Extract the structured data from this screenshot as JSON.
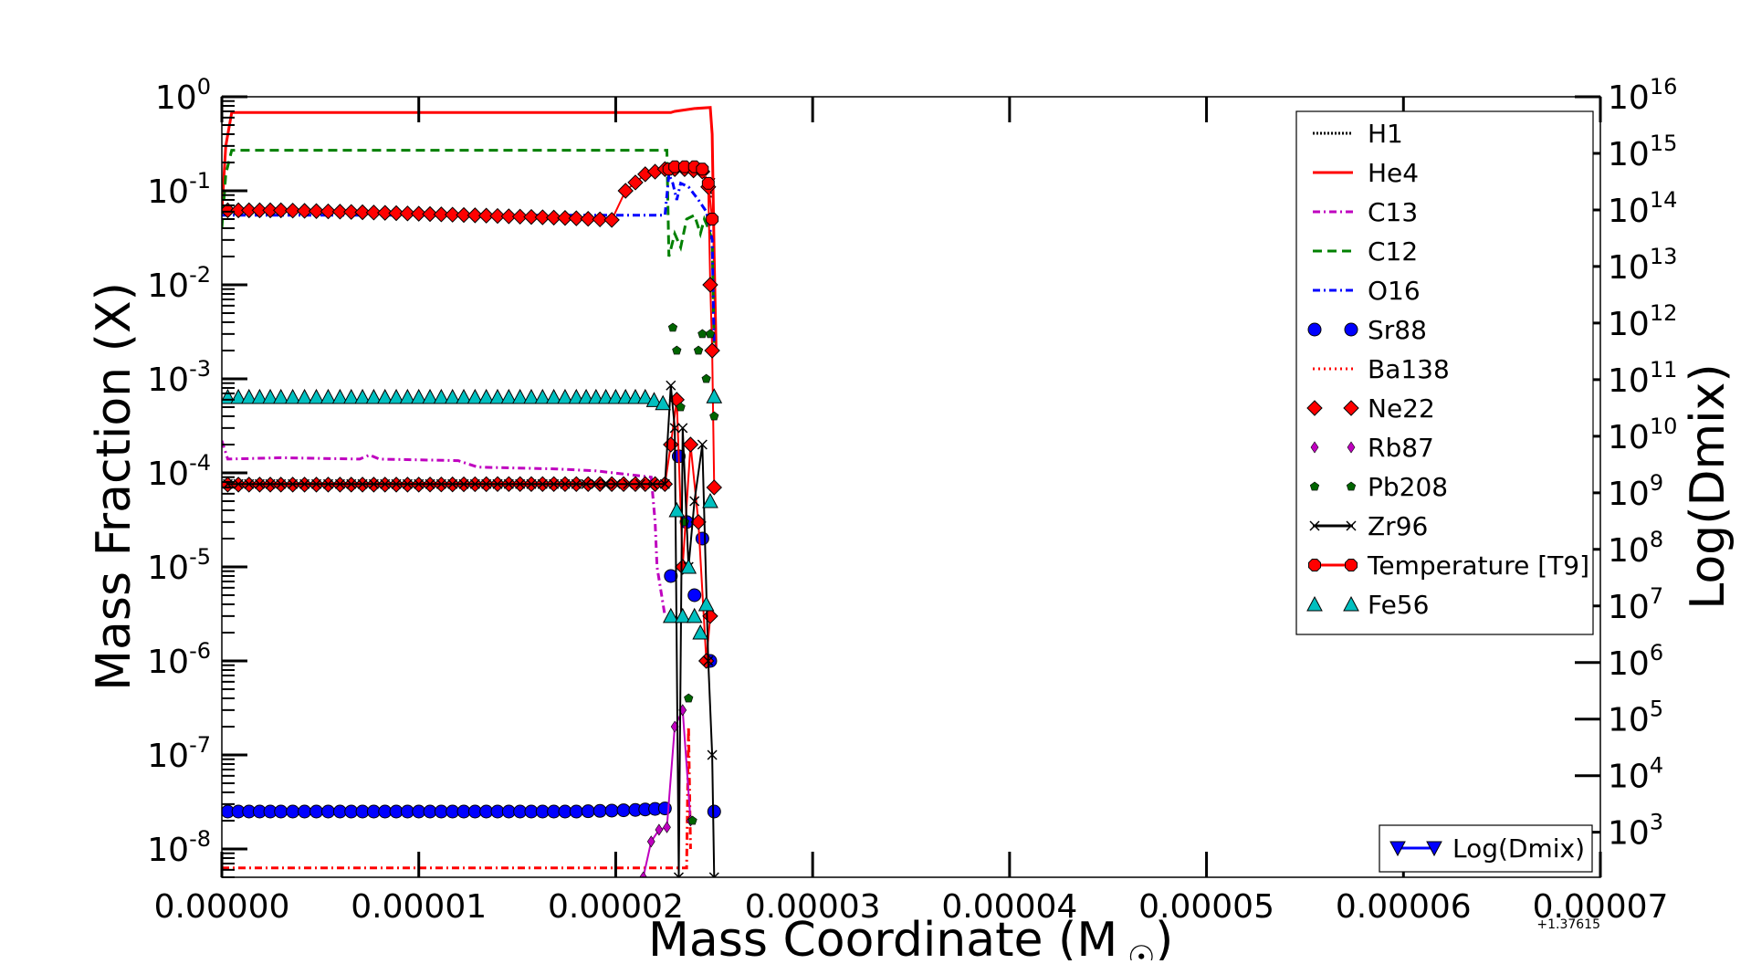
{
  "chart_data": {
    "type": "line",
    "xlabel": "Mass Coordinate (M",
    "xlabel_sub": "☉",
    "xlabel_close": ")",
    "ylabel": "Mass Fraction (X)",
    "y2label": "Log(Dmix)",
    "offset_label": "+1.37615",
    "xlim": [
      0.0,
      7e-05
    ],
    "ylim": [
      5e-09,
      1.0
    ],
    "y2lim": [
      160,
      1e+16
    ],
    "yscale": "log",
    "y2scale": "log",
    "grid": false,
    "legend_position": "upper right",
    "xticks": [
      "0.00000",
      "0.00001",
      "0.00002",
      "0.00003",
      "0.00004",
      "0.00005",
      "0.00006",
      "0.00007"
    ],
    "xtick_values": [
      0,
      1e-05,
      2e-05,
      3e-05,
      4e-05,
      5e-05,
      6e-05,
      7e-05
    ],
    "yticks": [
      {
        "base": "10",
        "exp": "0",
        "value": 1.0
      },
      {
        "base": "10",
        "exp": "-1",
        "value": 0.1
      },
      {
        "base": "10",
        "exp": "-2",
        "value": 0.01
      },
      {
        "base": "10",
        "exp": "-3",
        "value": 0.001
      },
      {
        "base": "10",
        "exp": "-4",
        "value": 0.0001
      },
      {
        "base": "10",
        "exp": "-5",
        "value": 1e-05
      },
      {
        "base": "10",
        "exp": "-6",
        "value": 1e-06
      },
      {
        "base": "10",
        "exp": "-7",
        "value": 1e-07
      },
      {
        "base": "10",
        "exp": "-8",
        "value": 1e-08
      }
    ],
    "y2ticks": [
      {
        "base": "10",
        "exp": "3",
        "value": 1000.0
      },
      {
        "base": "10",
        "exp": "4",
        "value": 10000.0
      },
      {
        "base": "10",
        "exp": "5",
        "value": 100000.0
      },
      {
        "base": "10",
        "exp": "6",
        "value": 1000000.0
      },
      {
        "base": "10",
        "exp": "7",
        "value": 10000000.0
      },
      {
        "base": "10",
        "exp": "8",
        "value": 100000000.0
      },
      {
        "base": "10",
        "exp": "9",
        "value": 1000000000.0
      },
      {
        "base": "10",
        "exp": "10",
        "value": 10000000000.0
      },
      {
        "base": "10",
        "exp": "11",
        "value": 100000000000.0
      },
      {
        "base": "10",
        "exp": "12",
        "value": 1000000000000.0
      },
      {
        "base": "10",
        "exp": "13",
        "value": 10000000000000.0
      },
      {
        "base": "10",
        "exp": "14",
        "value": 100000000000000.0
      },
      {
        "base": "10",
        "exp": "15",
        "value": 1000000000000000.0
      },
      {
        "base": "10",
        "exp": "16",
        "value": 1e+16
      }
    ],
    "series": [
      {
        "name": "H1",
        "color": "#000000",
        "style": "dotted",
        "marker": "none",
        "points": [
          [
            2.48e-05,
            0.085
          ],
          [
            2.49e-05,
            0.12
          ],
          [
            2.5e-05,
            0.14
          ]
        ]
      },
      {
        "name": "He4",
        "color": "#ff0000",
        "style": "solid",
        "marker": "none",
        "points": [
          [
            0,
            0.06
          ],
          [
            2e-07,
            0.3
          ],
          [
            5e-07,
            0.68
          ],
          [
            5e-06,
            0.68
          ],
          [
            1e-05,
            0.68
          ],
          [
            1.5e-05,
            0.68
          ],
          [
            2e-05,
            0.68
          ],
          [
            2.28e-05,
            0.68
          ],
          [
            2.3e-05,
            0.7
          ],
          [
            2.4e-05,
            0.75
          ],
          [
            2.48e-05,
            0.77
          ],
          [
            2.49e-05,
            0.4
          ],
          [
            2.5e-05,
            0.02
          ],
          [
            2.51e-05,
            0.002
          ]
        ]
      },
      {
        "name": "C13",
        "color": "#bf00bf",
        "style": "dashdot",
        "marker": "none",
        "points": [
          [
            0,
            0.00022
          ],
          [
            3e-07,
            0.00014
          ],
          [
            3e-06,
            0.000145
          ],
          [
            7e-06,
            0.00014
          ],
          [
            7.5e-06,
            0.000155
          ],
          [
            8e-06,
            0.00014
          ],
          [
            1.2e-05,
            0.000135
          ],
          [
            1.3e-05,
            0.000115
          ],
          [
            1.7e-05,
            0.00011
          ],
          [
            1.9e-05,
            0.000105
          ],
          [
            2.18e-05,
            9e-05
          ],
          [
            2.2e-05,
            3e-05
          ],
          [
            2.21e-05,
            1e-05
          ],
          [
            2.25e-05,
            3e-06
          ]
        ]
      },
      {
        "name": "C12",
        "color": "#008000",
        "style": "dashed",
        "marker": "none",
        "points": [
          [
            0,
            0.04
          ],
          [
            2e-07,
            0.15
          ],
          [
            5e-07,
            0.27
          ],
          [
            5e-06,
            0.27
          ],
          [
            1e-05,
            0.27
          ],
          [
            1.5e-05,
            0.27
          ],
          [
            2e-05,
            0.27
          ],
          [
            2.26e-05,
            0.27
          ],
          [
            2.27e-05,
            0.02
          ],
          [
            2.3e-05,
            0.035
          ],
          [
            2.33e-05,
            0.025
          ],
          [
            2.36e-05,
            0.05
          ],
          [
            2.4e-05,
            0.055
          ],
          [
            2.43e-05,
            0.035
          ],
          [
            2.45e-05,
            0.05
          ],
          [
            2.47e-05,
            0.04
          ],
          [
            2.49e-05,
            0.03
          ],
          [
            2.5e-05,
            0.002
          ]
        ]
      },
      {
        "name": "O16",
        "color": "#0000ff",
        "style": "dashdot",
        "marker": "none",
        "points": [
          [
            0,
            0.055
          ],
          [
            5e-06,
            0.055
          ],
          [
            1e-05,
            0.055
          ],
          [
            1.5e-05,
            0.055
          ],
          [
            2e-05,
            0.055
          ],
          [
            2.25e-05,
            0.055
          ],
          [
            2.27e-05,
            0.15
          ],
          [
            2.29e-05,
            0.12
          ],
          [
            2.31e-05,
            0.08
          ],
          [
            2.33e-05,
            0.12
          ],
          [
            2.37e-05,
            0.11
          ],
          [
            2.42e-05,
            0.08
          ],
          [
            2.46e-05,
            0.06
          ],
          [
            2.49e-05,
            0.03
          ],
          [
            2.5e-05,
            0.002
          ]
        ]
      },
      {
        "name": "Sr88",
        "color": "#0000ff",
        "style": "none",
        "marker": "circle",
        "points": [
          [
            3e-07,
            2.5e-08
          ],
          [
            3e-06,
            2.5e-08
          ],
          [
            6e-06,
            2.5e-08
          ],
          [
            1e-05,
            2.5e-08
          ],
          [
            1.4e-05,
            2.5e-08
          ],
          [
            1.8e-05,
            2.5e-08
          ],
          [
            2.1e-05,
            2.6e-08
          ],
          [
            2.25e-05,
            2.7e-08
          ],
          [
            2.28e-05,
            8e-06
          ],
          [
            2.32e-05,
            0.00015
          ],
          [
            2.36e-05,
            3e-05
          ],
          [
            2.4e-05,
            5e-06
          ],
          [
            2.44e-05,
            2e-05
          ],
          [
            2.48e-05,
            1e-06
          ],
          [
            2.5e-05,
            2.5e-08
          ]
        ]
      },
      {
        "name": "Ba138",
        "color": "#ff0000",
        "style": "dashdot",
        "marker": "none",
        "points": [
          [
            0,
            6.3e-09
          ],
          [
            5e-06,
            6.3e-09
          ],
          [
            1e-05,
            6.3e-09
          ],
          [
            1.5e-05,
            6.3e-09
          ],
          [
            2e-05,
            6.3e-09
          ],
          [
            2.25e-05,
            6.3e-09
          ],
          [
            2.36e-05,
            6.3e-09
          ],
          [
            2.37e-05,
            2e-07
          ],
          [
            2.38e-05,
            1e-08
          ]
        ]
      },
      {
        "name": "Ne22",
        "color": "#ff0000",
        "style": "solid",
        "marker": "diamond",
        "points": [
          [
            3e-07,
            0.062
          ],
          [
            3e-06,
            0.062
          ],
          [
            6e-06,
            0.06
          ],
          [
            1e-05,
            0.057
          ],
          [
            1.4e-05,
            0.054
          ],
          [
            1.8e-05,
            0.051
          ],
          [
            1.98e-05,
            0.049
          ],
          [
            2.05e-05,
            0.1
          ],
          [
            2.15e-05,
            0.15
          ],
          [
            2.25e-05,
            0.17
          ],
          [
            2.35e-05,
            0.17
          ],
          [
            2.44e-05,
            0.16
          ],
          [
            2.47e-05,
            0.11
          ],
          [
            2.48e-05,
            0.01
          ],
          [
            2.49e-05,
            0.002
          ],
          [
            2.5e-05,
            7e-05
          ]
        ]
      },
      {
        "name": "Ne22_b",
        "color": "#ff0000",
        "style": "solid",
        "marker": "diamond",
        "points": [
          [
            3e-07,
            7.5e-05
          ],
          [
            3e-06,
            7.5e-05
          ],
          [
            6e-06,
            7.5e-05
          ],
          [
            1e-05,
            7.5e-05
          ],
          [
            1.4e-05,
            7.6e-05
          ],
          [
            1.8e-05,
            7.6e-05
          ],
          [
            2.1e-05,
            7.6e-05
          ],
          [
            2.25e-05,
            7.6e-05
          ],
          [
            2.28e-05,
            0.0002
          ],
          [
            2.31e-05,
            0.0006
          ],
          [
            2.34e-05,
            1e-05
          ],
          [
            2.38e-05,
            0.0002
          ],
          [
            2.42e-05,
            3e-05
          ],
          [
            2.46e-05,
            1e-06
          ],
          [
            2.48e-05,
            3e-06
          ]
        ]
      },
      {
        "name": "Rb87",
        "color": "#bf00bf",
        "style": "solid",
        "marker": "diamond-small",
        "points": [
          [
            2.14e-05,
            5e-09
          ],
          [
            2.18e-05,
            1.2e-08
          ],
          [
            2.22e-05,
            1.6e-08
          ],
          [
            2.26e-05,
            1.7e-08
          ],
          [
            2.3e-05,
            2e-07
          ],
          [
            2.34e-05,
            3e-07
          ],
          [
            2.38e-05,
            2e-08
          ]
        ]
      },
      {
        "name": "Pb208",
        "color": "#006400",
        "style": "none",
        "marker": "pentagon",
        "points": [
          [
            2.29e-05,
            0.0035
          ],
          [
            2.31e-05,
            0.002
          ],
          [
            2.33e-05,
            0.0005
          ],
          [
            2.35e-05,
            3e-05
          ],
          [
            2.37e-05,
            4e-07
          ],
          [
            2.39e-05,
            2e-08
          ],
          [
            2.42e-05,
            0.002
          ],
          [
            2.44e-05,
            0.003
          ],
          [
            2.46e-05,
            0.001
          ],
          [
            2.48e-05,
            0.003
          ],
          [
            2.5e-05,
            0.0004
          ]
        ]
      },
      {
        "name": "Zr96",
        "color": "#000000",
        "style": "solid",
        "marker": "x",
        "points": [
          [
            3e-07,
            7.6e-05
          ],
          [
            3e-06,
            7.6e-05
          ],
          [
            6e-06,
            7.6e-05
          ],
          [
            1e-05,
            7.6e-05
          ],
          [
            1.4e-05,
            7.6e-05
          ],
          [
            1.8e-05,
            7.6e-05
          ],
          [
            2e-05,
            7.6e-05
          ],
          [
            2.25e-05,
            7.6e-05
          ],
          [
            2.28e-05,
            0.00085
          ],
          [
            2.3e-05,
            0.0003
          ],
          [
            2.32e-05,
            5e-09
          ],
          [
            2.34e-05,
            0.0003
          ],
          [
            2.37e-05,
            1e-05
          ],
          [
            2.4e-05,
            5e-05
          ],
          [
            2.44e-05,
            0.0002
          ],
          [
            2.47e-05,
            1e-06
          ],
          [
            2.49e-05,
            1e-07
          ],
          [
            2.5e-05,
            5e-09
          ]
        ]
      },
      {
        "name": "Temperature [T9]",
        "color": "#ff0000",
        "style": "solid",
        "marker": "octagon",
        "points": [
          [
            2.27e-05,
            0.17
          ],
          [
            2.3e-05,
            0.18
          ],
          [
            2.35e-05,
            0.18
          ],
          [
            2.4e-05,
            0.18
          ],
          [
            2.44e-05,
            0.17
          ],
          [
            2.47e-05,
            0.12
          ],
          [
            2.49e-05,
            0.05
          ]
        ]
      },
      {
        "name": "Fe56",
        "color": "#00bfbf",
        "style": "none",
        "marker": "triangle",
        "points": [
          [
            3e-07,
            0.00064
          ],
          [
            3e-06,
            0.00064
          ],
          [
            6e-06,
            0.00064
          ],
          [
            1e-05,
            0.00064
          ],
          [
            1.4e-05,
            0.00064
          ],
          [
            1.8e-05,
            0.00064
          ],
          [
            2e-05,
            0.00064
          ],
          [
            2.15e-05,
            0.00064
          ],
          [
            2.24e-05,
            0.00055
          ],
          [
            2.28e-05,
            3e-06
          ],
          [
            2.31e-05,
            4e-05
          ],
          [
            2.34e-05,
            3e-06
          ],
          [
            2.37e-05,
            1e-05
          ],
          [
            2.4e-05,
            3e-06
          ],
          [
            2.43e-05,
            2e-06
          ],
          [
            2.46e-05,
            4e-06
          ],
          [
            2.48e-05,
            5e-05
          ],
          [
            2.5e-05,
            0.00065
          ]
        ]
      }
    ],
    "legend": [
      {
        "label": "H1",
        "color": "#000000",
        "style": "dotted",
        "marker": "none"
      },
      {
        "label": "He4",
        "color": "#ff0000",
        "style": "solid",
        "marker": "none"
      },
      {
        "label": "C13",
        "color": "#bf00bf",
        "style": "dashdot",
        "marker": "none"
      },
      {
        "label": "C12",
        "color": "#008000",
        "style": "dashed",
        "marker": "none"
      },
      {
        "label": "O16",
        "color": "#0000ff",
        "style": "dashdot",
        "marker": "none"
      },
      {
        "label": "Sr88",
        "color": "#0000ff",
        "style": "none",
        "marker": "circle"
      },
      {
        "label": "Ba138",
        "color": "#ff0000",
        "style": "dotted-thin",
        "marker": "none"
      },
      {
        "label": "Ne22",
        "color": "#ff0000",
        "style": "none",
        "marker": "diamond"
      },
      {
        "label": "Rb87",
        "color": "#bf00bf",
        "style": "none",
        "marker": "diamond-small"
      },
      {
        "label": "Pb208",
        "color": "#006400",
        "style": "none",
        "marker": "pentagon"
      },
      {
        "label": "Zr96",
        "color": "#000000",
        "style": "solid",
        "marker": "x"
      },
      {
        "label": "Temperature [T9]",
        "color": "#ff0000",
        "style": "solid",
        "marker": "octagon"
      },
      {
        "label": "Fe56",
        "color": "#00bfbf",
        "style": "none",
        "marker": "triangle"
      }
    ],
    "legend2": [
      {
        "label": "Log(Dmix)",
        "color": "#0000ff",
        "style": "solid",
        "marker": "triangle-down"
      }
    ]
  }
}
